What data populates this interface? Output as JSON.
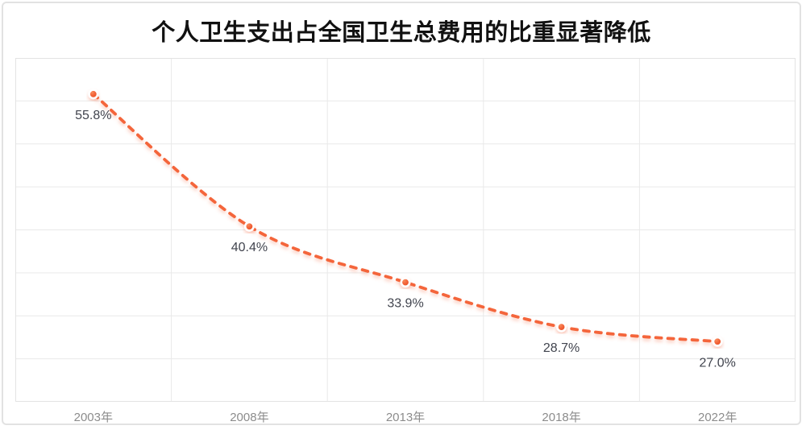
{
  "chart_data": {
    "type": "line",
    "title": "个人卫生支出占全国卫生总费用的比重显著降低",
    "categories": [
      "2003年",
      "2008年",
      "2013年",
      "2018年",
      "2022年"
    ],
    "values": [
      55.8,
      40.4,
      33.9,
      28.7,
      27.0
    ],
    "data_labels": [
      "55.8%",
      "40.4%",
      "33.9%",
      "28.7%",
      "27.0%"
    ],
    "xlabel": "",
    "ylabel": "",
    "ylim": [
      20,
      60
    ],
    "y_gridline_step": 5,
    "y_tick_labels_visible": false,
    "legend_position": "none",
    "grid": true,
    "line_style": "dashed",
    "smooth": true,
    "colors": {
      "line": "#F4653A",
      "marker_fill": "#F15E34",
      "marker_fill_light": "#F98B5C",
      "marker_fill_dark": "#E9501F",
      "marker_ring": "#FFFFFF",
      "data_label": "#41444E",
      "axis_label": "#8C8C8C",
      "gridline": "#E9E9E9",
      "plot_border": "#E3E3E3",
      "card_border": "#E2E2E2",
      "title": "#111111",
      "background": "#FFFFFF"
    }
  }
}
